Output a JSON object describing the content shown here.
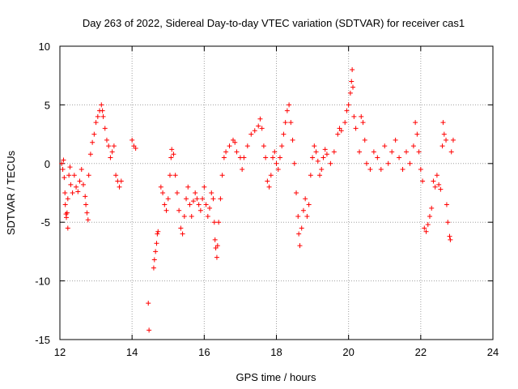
{
  "chart_data": {
    "type": "scatter",
    "title": "Day 263 of 2022, Sidereal Day-to-day VTEC variation (SDTVAR) for receiver cas1",
    "xlabel": "GPS time / hours",
    "ylabel": "SDTVAR / TECUs",
    "xlim": [
      12,
      24
    ],
    "ylim": [
      -15,
      10
    ],
    "x_ticks": [
      12,
      14,
      16,
      18,
      20,
      22,
      24
    ],
    "y_ticks": [
      10,
      5,
      0,
      -5,
      -10,
      -15
    ],
    "x_tick_labels": [
      "12",
      "14",
      "16",
      "18",
      "20",
      "22",
      "24"
    ],
    "y_tick_labels": [
      "10",
      "5",
      "0",
      "-5",
      "-10",
      "-15"
    ],
    "grid": true,
    "marker": "+",
    "marker_color": "#ff0000",
    "series": [
      {
        "name": "cas1",
        "points": [
          [
            12.05,
            0.0
          ],
          [
            12.08,
            -0.5
          ],
          [
            12.1,
            0.3
          ],
          [
            12.12,
            -1.2
          ],
          [
            12.14,
            -2.5
          ],
          [
            12.15,
            -3.5
          ],
          [
            12.17,
            -4.3
          ],
          [
            12.18,
            -4.6
          ],
          [
            12.2,
            -4.2
          ],
          [
            12.22,
            -3.0
          ],
          [
            12.22,
            -5.5
          ],
          [
            12.25,
            -1.0
          ],
          [
            12.28,
            -0.3
          ],
          [
            12.3,
            -1.8
          ],
          [
            12.35,
            -2.5
          ],
          [
            12.4,
            -1.0
          ],
          [
            12.45,
            -2.0
          ],
          [
            12.5,
            -2.4
          ],
          [
            12.55,
            -1.5
          ],
          [
            12.6,
            -0.5
          ],
          [
            12.65,
            -1.8
          ],
          [
            12.7,
            -2.8
          ],
          [
            12.72,
            -3.5
          ],
          [
            12.75,
            -4.2
          ],
          [
            12.78,
            -4.8
          ],
          [
            12.8,
            -1.0
          ],
          [
            12.85,
            0.8
          ],
          [
            12.9,
            1.8
          ],
          [
            12.95,
            2.5
          ],
          [
            13.0,
            3.5
          ],
          [
            13.05,
            4.0
          ],
          [
            13.1,
            4.5
          ],
          [
            13.15,
            5.0
          ],
          [
            13.18,
            4.5
          ],
          [
            13.2,
            4.0
          ],
          [
            13.25,
            3.0
          ],
          [
            13.3,
            2.0
          ],
          [
            13.35,
            1.5
          ],
          [
            13.4,
            0.5
          ],
          [
            13.45,
            1.0
          ],
          [
            13.5,
            1.5
          ],
          [
            13.55,
            -1.0
          ],
          [
            13.6,
            -1.5
          ],
          [
            13.65,
            -2.0
          ],
          [
            13.7,
            -1.5
          ],
          [
            14.0,
            2.0
          ],
          [
            14.05,
            1.5
          ],
          [
            14.1,
            1.3
          ],
          [
            14.45,
            -11.9
          ],
          [
            14.47,
            -14.2
          ],
          [
            14.6,
            -8.9
          ],
          [
            14.62,
            -8.2
          ],
          [
            14.65,
            -7.5
          ],
          [
            14.68,
            -6.8
          ],
          [
            14.7,
            -6.0
          ],
          [
            14.72,
            -5.8
          ],
          [
            14.8,
            -2.0
          ],
          [
            14.85,
            -2.5
          ],
          [
            14.9,
            -3.5
          ],
          [
            14.95,
            -4.0
          ],
          [
            15.0,
            -3.0
          ],
          [
            15.05,
            -1.0
          ],
          [
            15.08,
            0.5
          ],
          [
            15.1,
            1.2
          ],
          [
            15.15,
            0.8
          ],
          [
            15.2,
            -1.0
          ],
          [
            15.25,
            -2.5
          ],
          [
            15.3,
            -4.0
          ],
          [
            15.35,
            -5.5
          ],
          [
            15.4,
            -6.0
          ],
          [
            15.45,
            -4.5
          ],
          [
            15.5,
            -3.0
          ],
          [
            15.55,
            -2.0
          ],
          [
            15.6,
            -3.5
          ],
          [
            15.65,
            -4.5
          ],
          [
            15.7,
            -3.2
          ],
          [
            15.75,
            -2.5
          ],
          [
            15.8,
            -3.0
          ],
          [
            15.85,
            -3.5
          ],
          [
            15.9,
            -4.0
          ],
          [
            15.95,
            -3.0
          ],
          [
            16.0,
            -2.0
          ],
          [
            16.05,
            -3.5
          ],
          [
            16.1,
            -4.5
          ],
          [
            16.15,
            -3.8
          ],
          [
            16.2,
            -2.5
          ],
          [
            16.25,
            -3.0
          ],
          [
            16.28,
            -5.0
          ],
          [
            16.3,
            -6.5
          ],
          [
            16.32,
            -7.2
          ],
          [
            16.35,
            -8.0
          ],
          [
            16.37,
            -7.0
          ],
          [
            16.4,
            -5.0
          ],
          [
            16.45,
            -3.0
          ],
          [
            16.5,
            -1.0
          ],
          [
            16.55,
            0.5
          ],
          [
            16.6,
            1.0
          ],
          [
            16.7,
            1.5
          ],
          [
            16.8,
            2.0
          ],
          [
            16.85,
            1.8
          ],
          [
            16.9,
            1.0
          ],
          [
            17.0,
            0.5
          ],
          [
            17.05,
            -0.5
          ],
          [
            17.1,
            0.5
          ],
          [
            17.2,
            1.5
          ],
          [
            17.3,
            2.5
          ],
          [
            17.4,
            2.8
          ],
          [
            17.5,
            3.2
          ],
          [
            17.55,
            3.8
          ],
          [
            17.6,
            3.0
          ],
          [
            17.65,
            1.5
          ],
          [
            17.7,
            0.5
          ],
          [
            17.75,
            -1.5
          ],
          [
            17.8,
            -2.0
          ],
          [
            17.85,
            -1.0
          ],
          [
            17.9,
            0.5
          ],
          [
            17.95,
            1.0
          ],
          [
            18.0,
            0.0
          ],
          [
            18.05,
            -0.5
          ],
          [
            18.1,
            0.5
          ],
          [
            18.15,
            1.5
          ],
          [
            18.2,
            2.5
          ],
          [
            18.25,
            3.5
          ],
          [
            18.3,
            4.5
          ],
          [
            18.35,
            5.0
          ],
          [
            18.4,
            3.5
          ],
          [
            18.45,
            2.0
          ],
          [
            18.5,
            0.0
          ],
          [
            18.55,
            -2.5
          ],
          [
            18.6,
            -4.5
          ],
          [
            18.62,
            -6.0
          ],
          [
            18.65,
            -7.0
          ],
          [
            18.7,
            -5.5
          ],
          [
            18.75,
            -4.0
          ],
          [
            18.8,
            -3.0
          ],
          [
            18.85,
            -4.5
          ],
          [
            18.9,
            -3.5
          ],
          [
            18.95,
            -1.0
          ],
          [
            19.0,
            0.5
          ],
          [
            19.05,
            1.5
          ],
          [
            19.1,
            1.0
          ],
          [
            19.15,
            0.2
          ],
          [
            19.2,
            -1.0
          ],
          [
            19.25,
            -0.5
          ],
          [
            19.3,
            0.5
          ],
          [
            19.35,
            1.2
          ],
          [
            19.4,
            0.8
          ],
          [
            19.5,
            0.0
          ],
          [
            19.6,
            1.0
          ],
          [
            19.7,
            2.5
          ],
          [
            19.75,
            3.0
          ],
          [
            19.8,
            2.8
          ],
          [
            19.9,
            3.5
          ],
          [
            19.95,
            4.5
          ],
          [
            20.0,
            5.0
          ],
          [
            20.05,
            6.0
          ],
          [
            20.08,
            7.0
          ],
          [
            20.1,
            8.0
          ],
          [
            20.12,
            6.5
          ],
          [
            20.15,
            4.0
          ],
          [
            20.2,
            3.0
          ],
          [
            20.3,
            1.0
          ],
          [
            20.35,
            4.0
          ],
          [
            20.4,
            3.5
          ],
          [
            20.45,
            2.0
          ],
          [
            20.5,
            0.0
          ],
          [
            20.6,
            -0.5
          ],
          [
            20.7,
            1.0
          ],
          [
            20.8,
            0.5
          ],
          [
            20.9,
            -0.5
          ],
          [
            21.0,
            1.5
          ],
          [
            21.1,
            0.0
          ],
          [
            21.2,
            1.0
          ],
          [
            21.3,
            2.0
          ],
          [
            21.4,
            0.5
          ],
          [
            21.5,
            -0.5
          ],
          [
            21.6,
            1.0
          ],
          [
            21.7,
            0.0
          ],
          [
            21.8,
            1.5
          ],
          [
            21.85,
            3.5
          ],
          [
            21.9,
            2.5
          ],
          [
            21.95,
            1.0
          ],
          [
            22.0,
            -0.5
          ],
          [
            22.05,
            -1.5
          ],
          [
            22.1,
            -5.5
          ],
          [
            22.15,
            -5.8
          ],
          [
            22.2,
            -5.2
          ],
          [
            22.25,
            -4.5
          ],
          [
            22.3,
            -3.8
          ],
          [
            22.35,
            -1.5
          ],
          [
            22.4,
            -2.0
          ],
          [
            22.45,
            -1.0
          ],
          [
            22.5,
            -1.8
          ],
          [
            22.55,
            -2.2
          ],
          [
            22.6,
            1.5
          ],
          [
            22.62,
            3.5
          ],
          [
            22.65,
            2.5
          ],
          [
            22.7,
            2.0
          ],
          [
            22.72,
            -3.5
          ],
          [
            22.75,
            -5.0
          ],
          [
            22.8,
            -6.2
          ],
          [
            22.82,
            -6.5
          ],
          [
            22.85,
            1.0
          ],
          [
            22.9,
            2.0
          ]
        ]
      }
    ]
  }
}
